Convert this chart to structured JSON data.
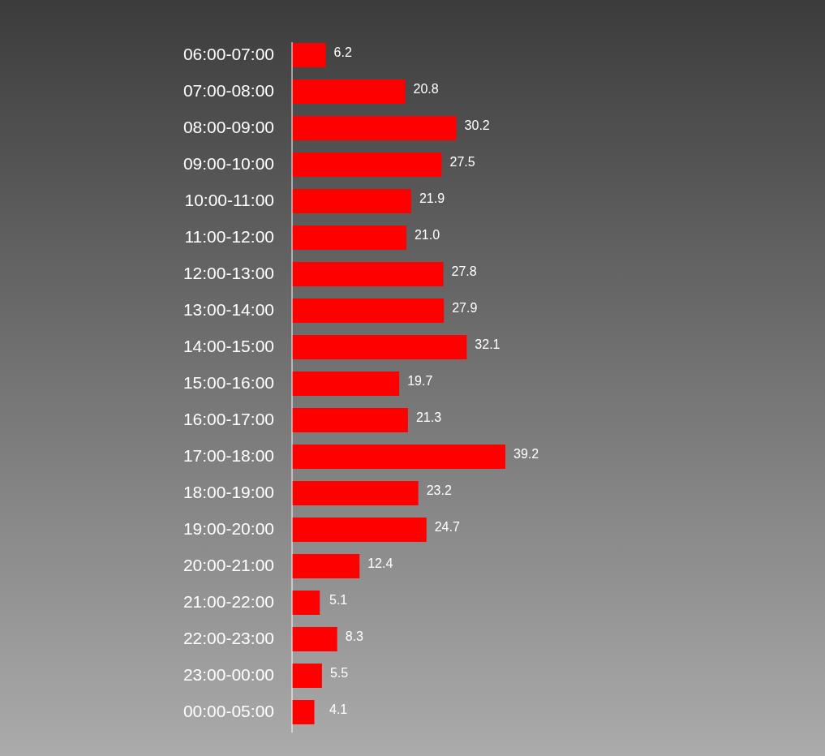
{
  "chart_data": {
    "type": "bar",
    "orientation": "horizontal",
    "color": "#ff0000",
    "categories": [
      "06:00-07:00",
      "07:00-08:00",
      "08:00-09:00",
      "09:00-10:00",
      "10:00-11:00",
      "11:00-12:00",
      "12:00-13:00",
      "13:00-14:00",
      "14:00-15:00",
      "15:00-16:00",
      "16:00-17:00",
      "17:00-18:00",
      "18:00-19:00",
      "19:00-20:00",
      "20:00-21:00",
      "21:00-22:00",
      "22:00-23:00",
      "23:00-00:00",
      "00:00-05:00"
    ],
    "values": [
      6.2,
      20.8,
      30.2,
      27.5,
      21.9,
      21.0,
      27.8,
      27.9,
      32.1,
      19.7,
      21.3,
      39.2,
      23.2,
      24.7,
      12.4,
      5.1,
      8.3,
      5.5,
      4.1
    ],
    "value_labels": [
      "6.2",
      "20.8",
      "30.2",
      "27.5",
      "21.9",
      "21.0",
      "27.8",
      "27.9",
      "32.1",
      "19.7",
      "21.3",
      "39.2",
      "23.2",
      "24.7",
      "12.4",
      "5.1",
      "8.3",
      "5.5",
      "4.1"
    ]
  }
}
